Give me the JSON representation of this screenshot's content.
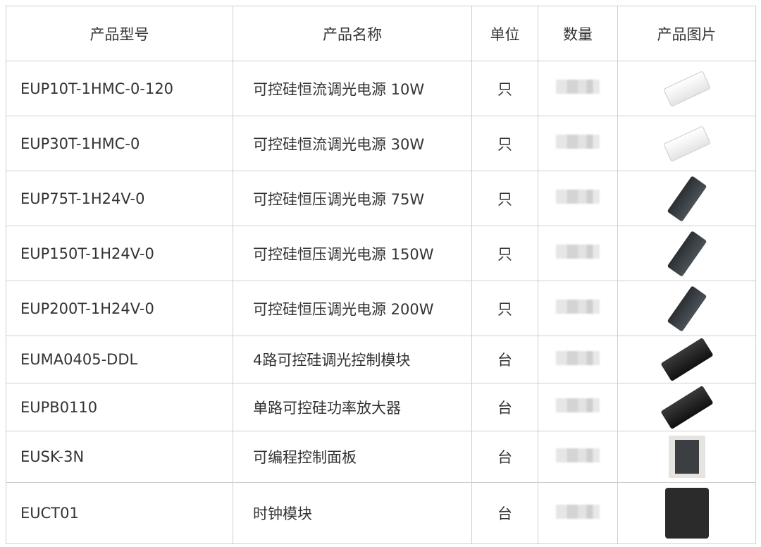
{
  "headers": [
    "产品型号",
    "产品名称",
    "单位",
    "数量",
    "产品图片"
  ],
  "rows": [
    {
      "model": "EUP10T-1HMC-0-120",
      "name": "可控硅恒流调光电源 10W",
      "unit": "只",
      "image": "white-driver"
    },
    {
      "model": "EUP30T-1HMC-0",
      "name": "可控硅恒流调光电源 30W",
      "unit": "只",
      "image": "white-driver"
    },
    {
      "model": "EUP75T-1H24V-0",
      "name": "可控硅恒压调光电源 75W",
      "unit": "只",
      "image": "dark-driver"
    },
    {
      "model": "EUP150T-1H24V-0",
      "name": "可控硅恒压调光电源 150W",
      "unit": "只",
      "image": "dark-driver"
    },
    {
      "model": "EUP200T-1H24V-0",
      "name": "可控硅恒压调光电源 200W",
      "unit": "只",
      "image": "dark-driver"
    },
    {
      "model": "EUMA0405-DDL",
      "name": "4路可控硅调光控制模块",
      "unit": "台",
      "image": "black-module"
    },
    {
      "model": "EUPB0110",
      "name": "单路可控硅功率放大器",
      "unit": "台",
      "image": "black-module"
    },
    {
      "model": "EUSK-3N",
      "name": "可编程控制面板",
      "unit": "台",
      "image": "control-panel"
    },
    {
      "model": "EUCT01",
      "name": "时钟模块",
      "unit": "台",
      "image": "clock-module"
    }
  ]
}
